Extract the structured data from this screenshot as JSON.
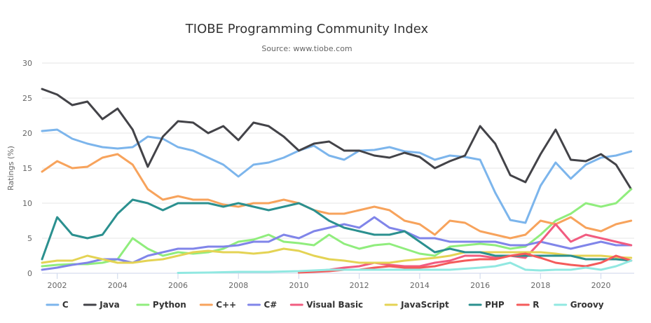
{
  "chart_data": {
    "type": "line",
    "title": "TIOBE Programming Community Index",
    "subtitle": "Source: www.tiobe.com",
    "ylabel": "Ratings (%)",
    "xlabel": "",
    "xlim": [
      2001.5,
      2021.1
    ],
    "ylim": [
      0,
      30
    ],
    "yticks": [
      "0",
      "5",
      "10",
      "15",
      "20",
      "25",
      "30"
    ],
    "xticks": [
      "2002",
      "2004",
      "2006",
      "2008",
      "2010",
      "2012",
      "2014",
      "2016",
      "2018",
      "2020"
    ],
    "grid": "horizontal",
    "legend_position": "bottom",
    "series": [
      {
        "name": "C",
        "color": "#7cb5ec",
        "x": [
          2001.5,
          2002,
          2002.5,
          2003,
          2003.5,
          2004,
          2004.5,
          2005,
          2005.5,
          2006,
          2006.5,
          2007,
          2007.5,
          2008,
          2008.5,
          2009,
          2009.5,
          2010,
          2010.5,
          2011,
          2011.5,
          2012,
          2012.5,
          2013,
          2013.5,
          2014,
          2014.5,
          2015,
          2015.5,
          2016,
          2016.5,
          2017,
          2017.5,
          2018,
          2018.5,
          2019,
          2019.5,
          2020,
          2020.5,
          2021
        ],
        "y": [
          20.3,
          20.5,
          19.2,
          18.5,
          18.0,
          17.8,
          18.0,
          19.5,
          19.2,
          18.0,
          17.5,
          16.5,
          15.5,
          13.8,
          15.5,
          15.8,
          16.5,
          17.5,
          18.2,
          16.8,
          16.2,
          17.5,
          17.6,
          18.0,
          17.4,
          17.2,
          16.2,
          16.8,
          16.6,
          16.2,
          11.5,
          7.6,
          7.2,
          12.5,
          15.8,
          13.5,
          15.5,
          16.5,
          16.8,
          17.4
        ]
      },
      {
        "name": "Java",
        "color": "#434348",
        "x": [
          2001.5,
          2002,
          2002.5,
          2003,
          2003.5,
          2004,
          2004.5,
          2005,
          2005.5,
          2006,
          2006.5,
          2007,
          2007.5,
          2008,
          2008.5,
          2009,
          2009.5,
          2010,
          2010.5,
          2011,
          2011.5,
          2012,
          2012.5,
          2013,
          2013.5,
          2014,
          2014.5,
          2015,
          2015.5,
          2016,
          2016.5,
          2017,
          2017.5,
          2018,
          2018.5,
          2019,
          2019.5,
          2020,
          2020.5,
          2021
        ],
        "y": [
          26.3,
          25.5,
          24.0,
          24.5,
          22.0,
          23.5,
          20.5,
          15.2,
          19.5,
          21.7,
          21.5,
          20.0,
          21.0,
          19.0,
          21.5,
          21.0,
          19.5,
          17.5,
          18.5,
          18.8,
          17.5,
          17.5,
          16.8,
          16.5,
          17.2,
          16.6,
          15.0,
          16.0,
          16.8,
          21.0,
          18.5,
          14.0,
          13.0,
          17.0,
          20.5,
          16.2,
          16.0,
          17.0,
          15.5,
          12.0
        ]
      },
      {
        "name": "Python",
        "color": "#90ed7d",
        "x": [
          2001.5,
          2002,
          2002.5,
          2003,
          2003.5,
          2004,
          2004.5,
          2005,
          2005.5,
          2006,
          2006.5,
          2007,
          2007.5,
          2008,
          2008.5,
          2009,
          2009.5,
          2010,
          2010.5,
          2011,
          2011.5,
          2012,
          2012.5,
          2013,
          2013.5,
          2014,
          2014.5,
          2015,
          2015.5,
          2016,
          2016.5,
          2017,
          2017.5,
          2018,
          2018.5,
          2019,
          2019.5,
          2020,
          2020.5,
          2021
        ],
        "y": [
          1.0,
          1.2,
          1.3,
          1.3,
          1.5,
          2.0,
          5.0,
          3.5,
          2.5,
          3.0,
          2.8,
          3.0,
          3.5,
          4.5,
          4.8,
          5.5,
          4.5,
          4.3,
          4.0,
          5.5,
          4.2,
          3.5,
          4.0,
          4.2,
          3.5,
          2.8,
          2.5,
          3.8,
          4.0,
          4.2,
          4.0,
          3.5,
          3.8,
          5.5,
          7.5,
          8.5,
          10.0,
          9.5,
          10.0,
          12.0
        ]
      },
      {
        "name": "C++",
        "color": "#f7a35c",
        "x": [
          2001.5,
          2002,
          2002.5,
          2003,
          2003.5,
          2004,
          2004.5,
          2005,
          2005.5,
          2006,
          2006.5,
          2007,
          2007.5,
          2008,
          2008.5,
          2009,
          2009.5,
          2010,
          2010.5,
          2011,
          2011.5,
          2012,
          2012.5,
          2013,
          2013.5,
          2014,
          2014.5,
          2015,
          2015.5,
          2016,
          2016.5,
          2017,
          2017.5,
          2018,
          2018.5,
          2019,
          2019.5,
          2020,
          2020.5,
          2021
        ],
        "y": [
          14.5,
          16.0,
          15.0,
          15.2,
          16.5,
          17.0,
          15.5,
          12.0,
          10.5,
          11.0,
          10.5,
          10.5,
          9.8,
          9.5,
          10.0,
          10.0,
          10.5,
          10.0,
          9.0,
          8.5,
          8.5,
          9.0,
          9.5,
          9.0,
          7.5,
          7.0,
          5.5,
          7.5,
          7.2,
          6.0,
          5.5,
          5.0,
          5.5,
          7.5,
          7.0,
          8.0,
          6.5,
          6.0,
          7.0,
          7.5
        ]
      },
      {
        "name": "C#",
        "color": "#8085e9",
        "x": [
          2001.5,
          2002,
          2002.5,
          2003,
          2003.5,
          2004,
          2004.5,
          2005,
          2005.5,
          2006,
          2006.5,
          2007,
          2007.5,
          2008,
          2008.5,
          2009,
          2009.5,
          2010,
          2010.5,
          2011,
          2011.5,
          2012,
          2012.5,
          2013,
          2013.5,
          2014,
          2014.5,
          2015,
          2015.5,
          2016,
          2016.5,
          2017,
          2017.5,
          2018,
          2018.5,
          2019,
          2019.5,
          2020,
          2020.5,
          2021
        ],
        "y": [
          0.5,
          0.8,
          1.2,
          1.5,
          2.0,
          2.0,
          1.5,
          2.5,
          3.0,
          3.5,
          3.5,
          3.8,
          3.8,
          4.0,
          4.5,
          4.5,
          5.5,
          5.0,
          6.0,
          6.5,
          7.0,
          6.5,
          8.0,
          6.5,
          6.0,
          5.0,
          5.0,
          4.5,
          4.5,
          4.5,
          4.5,
          4.0,
          4.0,
          4.5,
          4.0,
          3.5,
          4.0,
          4.5,
          4.0,
          4.0
        ]
      },
      {
        "name": "Visual Basic",
        "color": "#f15c80",
        "x": [
          2010.5,
          2011,
          2011.5,
          2012,
          2012.5,
          2013,
          2013.5,
          2014,
          2014.5,
          2015,
          2015.5,
          2016,
          2016.5,
          2017,
          2017.5,
          2018,
          2018.5,
          2019,
          2019.5,
          2020,
          2020.5,
          2021
        ],
        "y": [
          0.3,
          0.5,
          0.8,
          1.0,
          1.5,
          1.2,
          1.0,
          1.0,
          1.5,
          1.8,
          2.5,
          2.5,
          2.2,
          2.5,
          2.2,
          4.5,
          7.0,
          4.5,
          5.5,
          5.0,
          4.5,
          4.0
        ]
      },
      {
        "name": "JavaScript",
        "color": "#e4d354",
        "x": [
          2001.5,
          2002,
          2002.5,
          2003,
          2003.5,
          2004,
          2004.5,
          2005,
          2005.5,
          2006,
          2006.5,
          2007,
          2007.5,
          2008,
          2008.5,
          2009,
          2009.5,
          2010,
          2010.5,
          2011,
          2011.5,
          2012,
          2012.5,
          2013,
          2013.5,
          2014,
          2014.5,
          2015,
          2015.5,
          2016,
          2016.5,
          2017,
          2017.5,
          2018,
          2018.5,
          2019,
          2019.5,
          2020,
          2020.5,
          2021
        ],
        "y": [
          1.5,
          1.8,
          1.8,
          2.5,
          2.0,
          1.5,
          1.5,
          1.8,
          2.0,
          2.5,
          3.0,
          3.2,
          3.0,
          3.0,
          2.8,
          3.0,
          3.5,
          3.2,
          2.5,
          2.0,
          1.8,
          1.5,
          1.5,
          1.5,
          1.8,
          2.0,
          2.2,
          2.5,
          3.0,
          3.0,
          3.0,
          3.0,
          3.0,
          3.0,
          2.8,
          2.5,
          2.5,
          2.5,
          2.3,
          2.2
        ]
      },
      {
        "name": "PHP",
        "color": "#2b908f",
        "x": [
          2001.5,
          2002,
          2002.5,
          2003,
          2003.5,
          2004,
          2004.5,
          2005,
          2005.5,
          2006,
          2006.5,
          2007,
          2007.5,
          2008,
          2008.5,
          2009,
          2009.5,
          2010,
          2010.5,
          2011,
          2011.5,
          2012,
          2012.5,
          2013,
          2013.5,
          2014,
          2014.5,
          2015,
          2015.5,
          2016,
          2016.5,
          2017,
          2017.5,
          2018,
          2018.5,
          2019,
          2019.5,
          2020,
          2020.5,
          2021
        ],
        "y": [
          2.0,
          8.0,
          5.5,
          5.0,
          5.5,
          8.5,
          10.5,
          10.0,
          9.0,
          10.0,
          10.0,
          10.0,
          9.5,
          10.0,
          9.5,
          9.0,
          9.5,
          10.0,
          9.0,
          7.5,
          6.5,
          6.0,
          5.5,
          5.5,
          6.0,
          4.5,
          3.0,
          3.5,
          3.0,
          3.0,
          2.5,
          2.5,
          2.5,
          2.5,
          2.5,
          2.5,
          2.0,
          2.0,
          2.0,
          1.8
        ]
      },
      {
        "name": "R",
        "color": "#f45b5b",
        "x": [
          2010,
          2010.5,
          2011,
          2011.5,
          2012,
          2012.5,
          2013,
          2013.5,
          2014,
          2014.5,
          2015,
          2015.5,
          2016,
          2016.5,
          2017,
          2017.5,
          2018,
          2018.5,
          2019,
          2019.5,
          2020,
          2020.5,
          2021
        ],
        "y": [
          0.1,
          0.2,
          0.3,
          0.5,
          0.5,
          0.8,
          1.0,
          0.8,
          0.8,
          1.0,
          1.5,
          1.8,
          2.0,
          2.0,
          2.5,
          2.8,
          2.2,
          1.5,
          1.2,
          1.0,
          1.5,
          2.5,
          1.8
        ]
      },
      {
        "name": "Groovy",
        "color": "#91e8e1",
        "x": [
          2006,
          2007,
          2008,
          2009,
          2010,
          2011,
          2012,
          2013,
          2014,
          2015,
          2016,
          2016.5,
          2017,
          2017.5,
          2018,
          2018.5,
          2019,
          2019.5,
          2020,
          2020.5,
          2021
        ],
        "y": [
          0.05,
          0.1,
          0.2,
          0.2,
          0.3,
          0.5,
          0.5,
          0.5,
          0.5,
          0.5,
          0.8,
          1.0,
          1.5,
          0.5,
          0.4,
          0.5,
          0.5,
          0.8,
          0.5,
          1.0,
          1.8
        ]
      }
    ]
  }
}
